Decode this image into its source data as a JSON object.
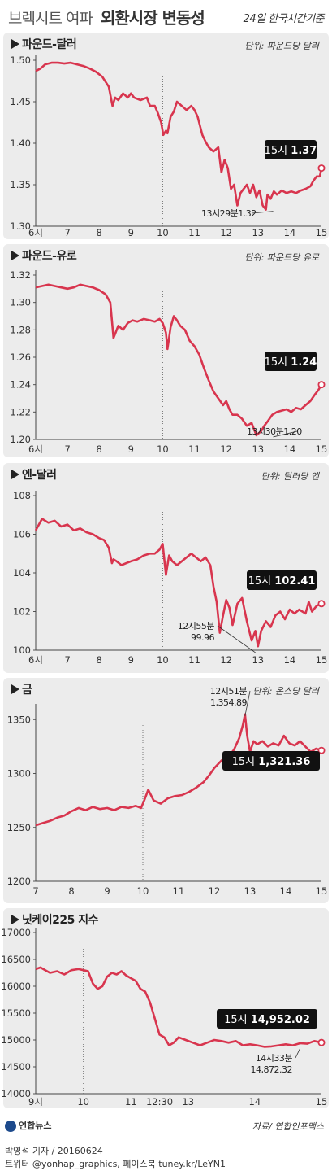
{
  "header": {
    "title_light": "브렉시트 여파",
    "title_bold": "외환시장 변동성",
    "note": "24일 한국시간기준"
  },
  "colors": {
    "line": "#d8354e",
    "panel": "#ececec",
    "box": "#111111"
  },
  "chart_data": [
    {
      "type": "line",
      "title": "파운드-달러",
      "unit_label": "단위: 파운드당 달러",
      "y_ticks": [
        "1.50",
        "1.45",
        "1.40",
        "1.35",
        "1.30"
      ],
      "ylim": [
        1.3,
        1.5
      ],
      "x_ticks": [
        "6시",
        "7",
        "8",
        "9",
        "10",
        "11",
        "12",
        "13",
        "14",
        "15"
      ],
      "xlim": [
        6,
        15
      ],
      "vline_x": 10,
      "series": [
        {
          "x": [
            6.0,
            6.15,
            6.3,
            6.5,
            6.7,
            6.9,
            7.1,
            7.3,
            7.5,
            7.7,
            7.9,
            8.1,
            8.3,
            8.42,
            8.5,
            8.6,
            8.75,
            8.9,
            9.0,
            9.1,
            9.3,
            9.5,
            9.6,
            9.75,
            9.85,
            9.95,
            10.02,
            10.1,
            10.15,
            10.25,
            10.35,
            10.45,
            10.6,
            10.75,
            10.9,
            11.0,
            11.1,
            11.25,
            11.35,
            11.45,
            11.6,
            11.75,
            11.85,
            11.95,
            12.05,
            12.15,
            12.25,
            12.35,
            12.45,
            12.55,
            12.65,
            12.75,
            12.85,
            12.95,
            13.05,
            13.15,
            13.25,
            13.3,
            13.4,
            13.5,
            13.6,
            13.75,
            13.9,
            14.05,
            14.2,
            14.35,
            14.5,
            14.65,
            14.75,
            14.85,
            14.95,
            15.0
          ],
          "y": [
            1.487,
            1.49,
            1.495,
            1.497,
            1.497,
            1.496,
            1.497,
            1.495,
            1.493,
            1.49,
            1.486,
            1.48,
            1.468,
            1.445,
            1.455,
            1.452,
            1.46,
            1.455,
            1.46,
            1.455,
            1.452,
            1.455,
            1.445,
            1.445,
            1.436,
            1.425,
            1.41,
            1.415,
            1.412,
            1.432,
            1.438,
            1.45,
            1.445,
            1.44,
            1.445,
            1.44,
            1.432,
            1.41,
            1.402,
            1.395,
            1.39,
            1.395,
            1.365,
            1.38,
            1.37,
            1.345,
            1.35,
            1.325,
            1.34,
            1.345,
            1.35,
            1.34,
            1.35,
            1.335,
            1.343,
            1.325,
            1.32,
            1.338,
            1.333,
            1.342,
            1.338,
            1.343,
            1.34,
            1.342,
            1.34,
            1.343,
            1.345,
            1.348,
            1.355,
            1.36,
            1.36,
            1.37
          ]
        }
      ],
      "annotations": [
        {
          "text": "13시29분1.32",
          "x": 13.48,
          "y": 1.32
        }
      ],
      "callout": {
        "label": "15시",
        "value": "1.37"
      }
    },
    {
      "type": "line",
      "title": "파운드-유로",
      "unit_label": "단위: 파운드당 유로",
      "y_ticks": [
        "1.32",
        "1.30",
        "1.28",
        "1.26",
        "1.24",
        "1.22",
        "1.20"
      ],
      "ylim": [
        1.2,
        1.32
      ],
      "x_ticks": [
        "6시",
        "7",
        "8",
        "9",
        "10",
        "11",
        "12",
        "13",
        "14",
        "15"
      ],
      "xlim": [
        6,
        15
      ],
      "vline_x": 10,
      "series": [
        {
          "x": [
            6.0,
            6.2,
            6.4,
            6.6,
            6.8,
            7.0,
            7.2,
            7.4,
            7.6,
            7.8,
            8.0,
            8.2,
            8.35,
            8.45,
            8.5,
            8.6,
            8.75,
            8.9,
            9.05,
            9.2,
            9.4,
            9.6,
            9.75,
            9.9,
            10.0,
            10.1,
            10.15,
            10.25,
            10.35,
            10.45,
            10.55,
            10.7,
            10.85,
            11.0,
            11.15,
            11.3,
            11.45,
            11.6,
            11.75,
            11.9,
            12.0,
            12.1,
            12.2,
            12.35,
            12.5,
            12.65,
            12.8,
            12.95,
            13.1,
            13.2,
            13.3,
            13.45,
            13.6,
            13.75,
            13.9,
            14.05,
            14.2,
            14.35,
            14.5,
            14.65,
            14.8,
            14.9,
            15.0
          ],
          "y": [
            1.311,
            1.312,
            1.313,
            1.312,
            1.311,
            1.31,
            1.311,
            1.313,
            1.312,
            1.311,
            1.309,
            1.306,
            1.3,
            1.274,
            1.277,
            1.283,
            1.28,
            1.285,
            1.287,
            1.286,
            1.288,
            1.287,
            1.286,
            1.288,
            1.285,
            1.278,
            1.266,
            1.282,
            1.29,
            1.287,
            1.283,
            1.28,
            1.272,
            1.268,
            1.262,
            1.252,
            1.243,
            1.235,
            1.23,
            1.225,
            1.228,
            1.222,
            1.218,
            1.218,
            1.215,
            1.21,
            1.212,
            1.203,
            1.206,
            1.21,
            1.213,
            1.218,
            1.22,
            1.221,
            1.222,
            1.22,
            1.223,
            1.222,
            1.225,
            1.228,
            1.233,
            1.236,
            1.24
          ]
        }
      ],
      "annotations": [
        {
          "text": "13시30분1.20",
          "x": 13.48,
          "y": 1.203
        }
      ],
      "callout": {
        "label": "15시",
        "value": "1.24"
      }
    },
    {
      "type": "line",
      "title": "엔-달러",
      "unit_label": "단위: 달러당 엔",
      "y_ticks": [
        "108",
        "106",
        "104",
        "102",
        "100"
      ],
      "ylim": [
        100,
        108
      ],
      "x_ticks": [
        "6시",
        "7",
        "8",
        "9",
        "10",
        "11",
        "12",
        "13",
        "14",
        "15"
      ],
      "xlim": [
        6,
        15
      ],
      "vline_x": 10,
      "series": [
        {
          "x": [
            6.0,
            6.2,
            6.4,
            6.6,
            6.8,
            7.0,
            7.2,
            7.4,
            7.6,
            7.8,
            8.0,
            8.15,
            8.3,
            8.4,
            8.45,
            8.55,
            8.7,
            8.85,
            9.0,
            9.2,
            9.4,
            9.6,
            9.75,
            9.9,
            10.0,
            10.1,
            10.2,
            10.3,
            10.45,
            10.6,
            10.75,
            10.9,
            11.05,
            11.2,
            11.35,
            11.5,
            11.6,
            11.7,
            11.8,
            11.9,
            12.0,
            12.1,
            12.2,
            12.35,
            12.5,
            12.65,
            12.8,
            12.92,
            13.0,
            13.1,
            13.25,
            13.4,
            13.55,
            13.7,
            13.85,
            14.0,
            14.15,
            14.3,
            14.5,
            14.6,
            14.7,
            14.85,
            15.0
          ],
          "y": [
            106.2,
            106.8,
            106.6,
            106.7,
            106.4,
            106.5,
            106.2,
            106.3,
            106.1,
            106.0,
            105.8,
            105.7,
            105.3,
            104.5,
            104.7,
            104.6,
            104.4,
            104.5,
            104.6,
            104.7,
            104.9,
            105.0,
            105.0,
            105.2,
            105.5,
            103.9,
            104.9,
            104.6,
            104.4,
            104.6,
            104.8,
            105.0,
            104.8,
            104.6,
            104.8,
            104.4,
            103.3,
            102.5,
            100.9,
            101.8,
            102.6,
            102.2,
            101.3,
            102.4,
            102.7,
            101.5,
            100.5,
            101.0,
            100.2,
            101.0,
            101.5,
            101.2,
            101.8,
            102.0,
            101.6,
            102.1,
            101.9,
            102.1,
            101.9,
            102.5,
            102.0,
            102.3,
            102.41
          ]
        }
      ],
      "annotations": [
        {
          "text": "12시55분",
          "text2": "99.96",
          "x": 12.92,
          "y": 99.96
        }
      ],
      "callout": {
        "label": "15시",
        "value": "102.41"
      }
    },
    {
      "type": "line",
      "title": "금",
      "unit_label": "단위: 온스당 달러",
      "y_ticks": [
        "1350",
        "1300",
        "1250",
        "1200"
      ],
      "ylim": [
        1200,
        1360
      ],
      "x_ticks": [
        "7",
        "8",
        "9",
        "10",
        "11",
        "12",
        "13",
        "14",
        "15"
      ],
      "xlim": [
        7,
        15
      ],
      "vline_x": 10,
      "series": [
        {
          "x": [
            7.0,
            7.2,
            7.4,
            7.6,
            7.8,
            8.0,
            8.2,
            8.4,
            8.6,
            8.8,
            9.0,
            9.2,
            9.4,
            9.6,
            9.8,
            9.95,
            10.05,
            10.15,
            10.3,
            10.5,
            10.7,
            10.9,
            11.1,
            11.3,
            11.5,
            11.7,
            11.85,
            12.0,
            12.2,
            12.4,
            12.55,
            12.7,
            12.8,
            12.86,
            12.92,
            13.0,
            13.1,
            13.2,
            13.35,
            13.5,
            13.65,
            13.8,
            13.95,
            14.1,
            14.25,
            14.4,
            14.55,
            14.7,
            14.85,
            15.0
          ],
          "y": [
            1252,
            1254,
            1256,
            1259,
            1261,
            1265,
            1268,
            1266,
            1269,
            1267,
            1268,
            1266,
            1269,
            1268,
            1270,
            1268,
            1276,
            1285,
            1275,
            1272,
            1277,
            1279,
            1280,
            1283,
            1287,
            1292,
            1298,
            1305,
            1312,
            1316,
            1322,
            1333,
            1345,
            1354.89,
            1335,
            1320,
            1330,
            1327,
            1330,
            1325,
            1328,
            1326,
            1335,
            1328,
            1326,
            1330,
            1325,
            1320,
            1323,
            1321.36
          ]
        }
      ],
      "annotations": [
        {
          "text": "12시51분",
          "text2": "1,354.89",
          "x": 12.86,
          "y": 1354.89
        }
      ],
      "callout": {
        "label": "15시",
        "value": "1,321.36"
      }
    },
    {
      "type": "line",
      "title": "닛케이225 지수",
      "unit_label": "",
      "y_ticks": [
        "17000",
        "16500",
        "16000",
        "15500",
        "15000",
        "14500",
        "14000"
      ],
      "ylim": [
        14000,
        17000
      ],
      "x_ticks": [
        "9시",
        "10",
        "11",
        "12:30",
        "13",
        "14",
        "15"
      ],
      "x_tick_pos": [
        9,
        10,
        11,
        11.6,
        12.2,
        13.6,
        15
      ],
      "xlim": [
        9,
        15
      ],
      "vline_x": 10,
      "series": [
        {
          "x": [
            9.0,
            9.1,
            9.2,
            9.3,
            9.45,
            9.6,
            9.75,
            9.9,
            10.0,
            10.1,
            10.2,
            10.3,
            10.4,
            10.5,
            10.6,
            10.7,
            10.8,
            10.9,
            11.0,
            11.1,
            11.2,
            11.3,
            11.4,
            11.5,
            11.6,
            11.7,
            11.8,
            11.9,
            12.0,
            12.15,
            12.3,
            12.45,
            12.6,
            12.75,
            12.9,
            13.05,
            13.2,
            13.35,
            13.5,
            13.65,
            13.8,
            13.95,
            14.1,
            14.25,
            14.4,
            14.55,
            14.7,
            14.85,
            15.0
          ],
          "y": [
            16320,
            16350,
            16300,
            16250,
            16280,
            16220,
            16300,
            16320,
            16300,
            16280,
            16050,
            15950,
            16000,
            16180,
            16250,
            16220,
            16280,
            16200,
            16150,
            16100,
            15950,
            15900,
            15700,
            15400,
            15100,
            15050,
            14900,
            14950,
            15050,
            15000,
            14950,
            14900,
            14950,
            15000,
            14980,
            14950,
            14980,
            14900,
            14920,
            14900,
            14872,
            14880,
            14900,
            14920,
            14900,
            14940,
            14930,
            14980,
            14952
          ]
        }
      ],
      "annotations": [
        {
          "text": "14시33분",
          "text2": "14,872.32",
          "x": 14.55,
          "y": 14872
        }
      ],
      "callout": {
        "label": "15시",
        "value": "14,952.02"
      }
    }
  ],
  "footer": {
    "logo_text": "연합뉴스",
    "source": "자료/ 연합인포맥스",
    "byline": "박영석 기자 / 20160624",
    "twitter": "트위터 @yonhap_graphics, 페이스북 tuney.kr/LeYN1"
  }
}
